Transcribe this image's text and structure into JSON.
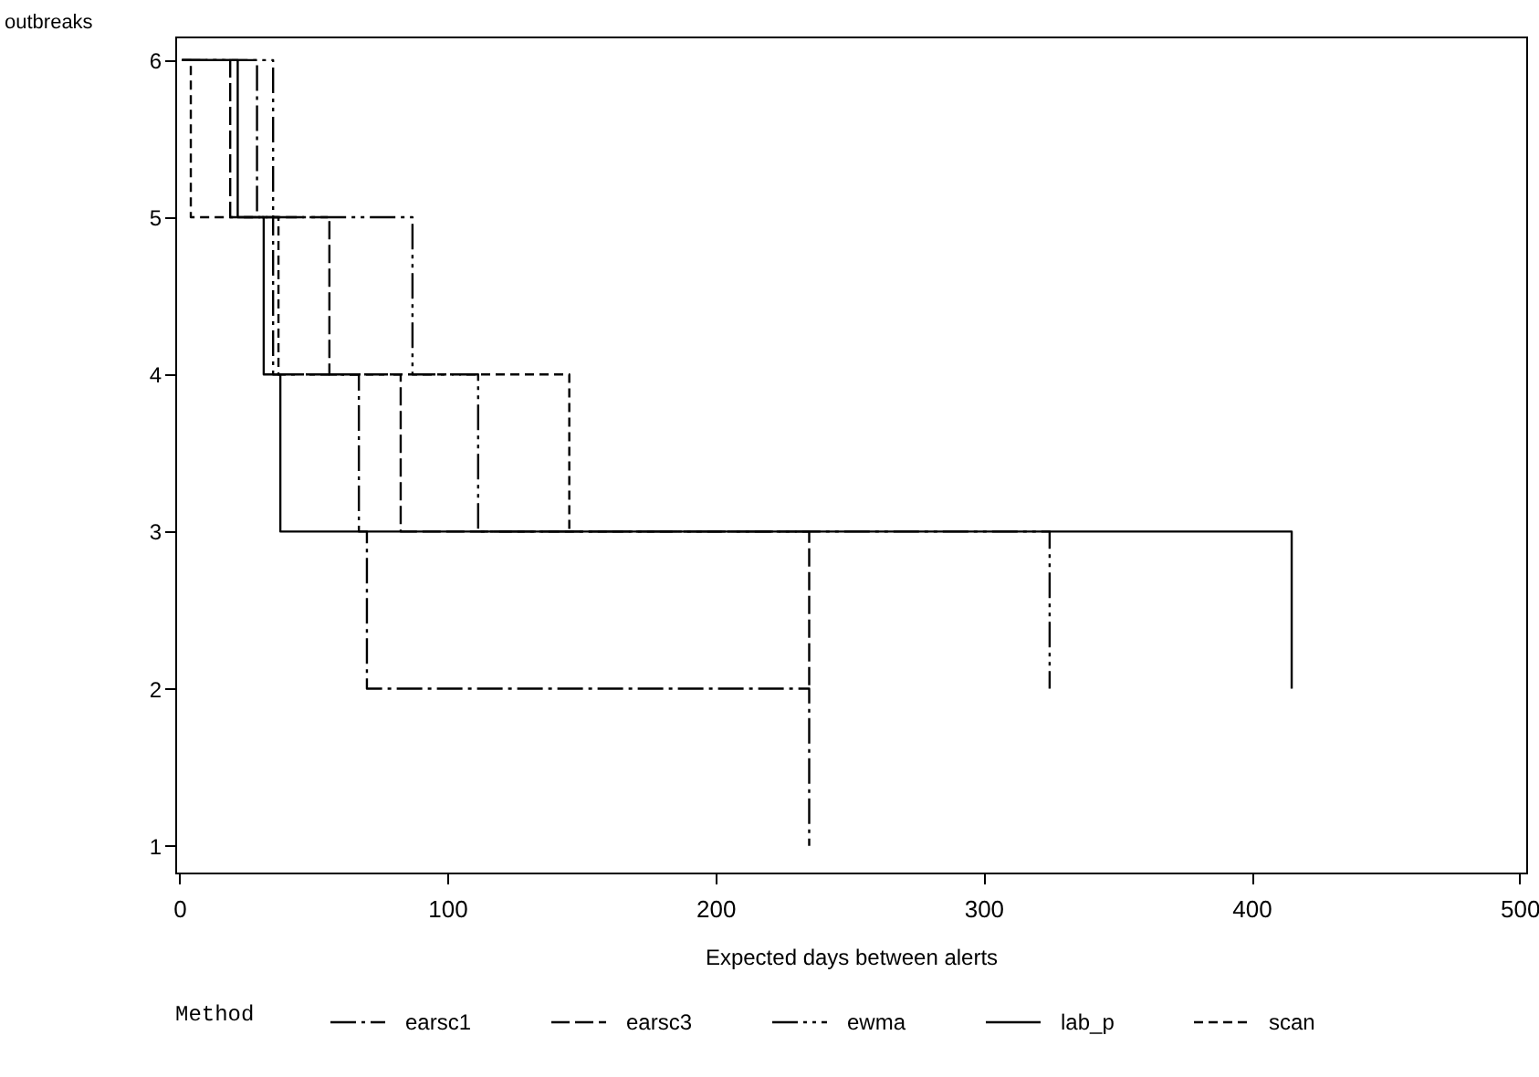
{
  "chart_data": {
    "type": "step",
    "xlabel": "Expected days between alerts",
    "ylabel": "outbreaks",
    "legend_title": "Method",
    "legend": "bottom",
    "grid": false,
    "xlim": [
      -1.5,
      502.5
    ],
    "xticks": [
      0,
      100,
      200,
      300,
      400,
      500
    ],
    "ylim": [
      0.83,
      6.15
    ],
    "yticks": [
      1,
      2,
      3,
      4,
      5,
      6
    ],
    "series": [
      {
        "name": "earsc1",
        "color": "#000000",
        "line_style": "dashdot",
        "x": [
          1,
          29,
          35,
          67,
          70,
          235
        ],
        "values": [
          6,
          5,
          4,
          3,
          2,
          1
        ]
      },
      {
        "name": "earsc3",
        "color": "#000000",
        "line_style": "longdash",
        "x": [
          1,
          19,
          56,
          82.6,
          235
        ],
        "values": [
          6,
          5,
          4,
          3,
          2
        ]
      },
      {
        "name": "ewma",
        "color": "#000000",
        "line_style": "dashdotdot",
        "x": [
          1,
          35,
          87,
          111.5,
          324.7
        ],
        "values": [
          6,
          5,
          4,
          3,
          2
        ]
      },
      {
        "name": "lab_p",
        "color": "#000000",
        "line_style": "solid",
        "x": [
          1,
          21.8,
          31.5,
          37.7,
          415
        ],
        "values": [
          6,
          5,
          4,
          3,
          2
        ]
      },
      {
        "name": "scan",
        "color": "#000000",
        "line_style": "dashed",
        "x": [
          1,
          4.3,
          37,
          145.5
        ],
        "values": [
          6,
          5,
          4,
          3
        ]
      }
    ]
  }
}
